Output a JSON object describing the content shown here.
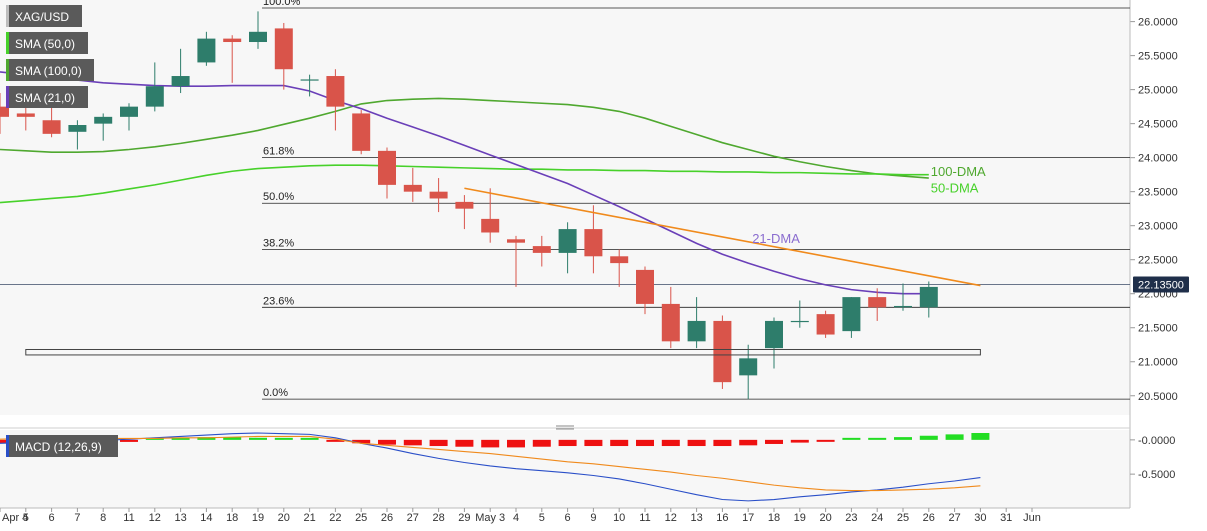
{
  "symbol": "XAG/USD",
  "legend": [
    {
      "label": "SMA (50,0)"
    },
    {
      "label": "SMA (100,0)"
    },
    {
      "label": "SMA (21,0)"
    }
  ],
  "macd_label": "MACD (12,26,9)",
  "current_price_label": "22.13500",
  "colors": {
    "up": "#2e7d6b",
    "down": "#d9544a",
    "sma21": "#6a3fb8",
    "sma50": "#47d12a",
    "sma100": "#4fa82f",
    "trend": "#f08a1c",
    "macd_up": "#22dd22",
    "macd_down": "#ee1111",
    "macd_line": "#2a4fc8",
    "signal_line": "#f08a1c"
  },
  "chart_data": [
    {
      "type": "candlestick",
      "x_labels": [
        "Apr 4",
        "5",
        "6",
        "7",
        "8",
        "11",
        "12",
        "13",
        "14",
        "18",
        "19",
        "20",
        "21",
        "22",
        "25",
        "26",
        "27",
        "28",
        "29",
        "May 3",
        "4",
        "5",
        "6",
        "9",
        "10",
        "11",
        "12",
        "13",
        "16",
        "17",
        "18",
        "19",
        "20",
        "23",
        "24",
        "25",
        "26",
        "27",
        "30",
        "31",
        "Jun"
      ],
      "y_ticks": [
        "26.0000",
        "25.5000",
        "25.0000",
        "24.5000",
        "24.0000",
        "23.5000",
        "23.0000",
        "22.5000",
        "22.0000",
        "21.5000",
        "21.0000",
        "20.5000"
      ],
      "ylim": [
        20.32,
        26.2
      ],
      "candles": [
        {
          "x": "Apr 4",
          "o": 24.75,
          "h": 24.95,
          "l": 24.35,
          "c": 24.6
        },
        {
          "x": "5",
          "o": 24.65,
          "h": 24.9,
          "l": 24.4,
          "c": 24.6
        },
        {
          "x": "6",
          "o": 24.55,
          "h": 24.85,
          "l": 24.3,
          "c": 24.35
        },
        {
          "x": "7",
          "o": 24.38,
          "h": 24.55,
          "l": 24.12,
          "c": 24.48
        },
        {
          "x": "8",
          "o": 24.5,
          "h": 24.65,
          "l": 24.25,
          "c": 24.6
        },
        {
          "x": "11",
          "o": 24.6,
          "h": 24.8,
          "l": 24.4,
          "c": 24.75
        },
        {
          "x": "12",
          "o": 24.75,
          "h": 25.4,
          "l": 24.68,
          "c": 25.05
        },
        {
          "x": "13",
          "o": 25.05,
          "h": 25.6,
          "l": 24.95,
          "c": 25.2
        },
        {
          "x": "14",
          "o": 25.4,
          "h": 25.85,
          "l": 25.35,
          "c": 25.75
        },
        {
          "x": "18",
          "o": 25.75,
          "h": 25.8,
          "l": 25.1,
          "c": 25.7
        },
        {
          "x": "19",
          "o": 25.7,
          "h": 26.15,
          "l": 25.6,
          "c": 25.85
        },
        {
          "x": "20",
          "o": 25.9,
          "h": 25.98,
          "l": 25.0,
          "c": 25.3
        },
        {
          "x": "21",
          "o": 25.15,
          "h": 25.22,
          "l": 24.9,
          "c": 25.15
        },
        {
          "x": "22",
          "o": 25.2,
          "h": 25.3,
          "l": 24.4,
          "c": 24.75
        },
        {
          "x": "25",
          "o": 24.65,
          "h": 24.7,
          "l": 24.05,
          "c": 24.1
        },
        {
          "x": "26",
          "o": 24.1,
          "h": 24.15,
          "l": 23.4,
          "c": 23.6
        },
        {
          "x": "27",
          "o": 23.6,
          "h": 23.85,
          "l": 23.35,
          "c": 23.5
        },
        {
          "x": "28",
          "o": 23.5,
          "h": 23.7,
          "l": 23.2,
          "c": 23.4
        },
        {
          "x": "29",
          "o": 23.35,
          "h": 23.45,
          "l": 22.95,
          "c": 23.25
        },
        {
          "x": "May 3",
          "o": 23.1,
          "h": 23.55,
          "l": 22.75,
          "c": 22.9
        },
        {
          "x": "4",
          "o": 22.8,
          "h": 22.85,
          "l": 22.1,
          "c": 22.75
        },
        {
          "x": "5",
          "o": 22.7,
          "h": 22.85,
          "l": 22.4,
          "c": 22.6
        },
        {
          "x": "6",
          "o": 22.6,
          "h": 23.05,
          "l": 22.3,
          "c": 22.95
        },
        {
          "x": "9",
          "o": 22.95,
          "h": 23.3,
          "l": 22.3,
          "c": 22.55
        },
        {
          "x": "10",
          "o": 22.55,
          "h": 22.65,
          "l": 22.1,
          "c": 22.45
        },
        {
          "x": "11",
          "o": 22.35,
          "h": 22.4,
          "l": 21.7,
          "c": 21.85
        },
        {
          "x": "12",
          "o": 21.85,
          "h": 22.1,
          "l": 21.2,
          "c": 21.3
        },
        {
          "x": "13",
          "o": 21.3,
          "h": 21.95,
          "l": 21.2,
          "c": 21.6
        },
        {
          "x": "16",
          "o": 21.6,
          "h": 21.68,
          "l": 20.6,
          "c": 20.7
        },
        {
          "x": "17",
          "o": 20.8,
          "h": 21.25,
          "l": 20.45,
          "c": 21.05
        },
        {
          "x": "18",
          "o": 21.2,
          "h": 21.65,
          "l": 20.9,
          "c": 21.6
        },
        {
          "x": "19",
          "o": 21.6,
          "h": 21.9,
          "l": 21.5,
          "c": 21.6
        },
        {
          "x": "20",
          "o": 21.7,
          "h": 21.75,
          "l": 21.35,
          "c": 21.4
        },
        {
          "x": "23",
          "o": 21.45,
          "h": 21.95,
          "l": 21.35,
          "c": 21.95
        },
        {
          "x": "24",
          "o": 21.95,
          "h": 22.08,
          "l": 21.6,
          "c": 21.8
        },
        {
          "x": "25",
          "o": 21.8,
          "h": 22.15,
          "l": 21.75,
          "c": 21.82
        },
        {
          "x": "26",
          "o": 21.8,
          "h": 22.18,
          "l": 21.65,
          "c": 22.1
        }
      ],
      "sma50": [
        23.34,
        23.37,
        23.4,
        23.43,
        23.48,
        23.54,
        23.6,
        23.67,
        23.74,
        23.8,
        23.84,
        23.86,
        23.88,
        23.89,
        23.89,
        23.88,
        23.87,
        23.86,
        23.85,
        23.84,
        23.83,
        23.83,
        23.82,
        23.82,
        23.81,
        23.81,
        23.8,
        23.8,
        23.79,
        23.79,
        23.78,
        23.78,
        23.77,
        23.76,
        23.76,
        23.75,
        23.75
      ],
      "sma100": [
        24.12,
        24.1,
        24.08,
        24.08,
        24.09,
        24.12,
        24.16,
        24.21,
        24.27,
        24.33,
        24.4,
        24.49,
        24.58,
        24.68,
        24.79,
        24.84,
        24.86,
        24.87,
        24.86,
        24.84,
        24.82,
        24.8,
        24.78,
        24.74,
        24.68,
        24.58,
        24.46,
        24.34,
        24.22,
        24.12,
        24.02,
        23.94,
        23.87,
        23.81,
        23.76,
        23.73,
        23.7
      ],
      "sma21": [
        25.26,
        25.22,
        25.18,
        25.14,
        25.1,
        25.08,
        25.06,
        25.05,
        25.05,
        25.06,
        25.06,
        25.06,
        24.98,
        24.84,
        24.72,
        24.58,
        24.45,
        24.32,
        24.18,
        24.04,
        23.9,
        23.76,
        23.62,
        23.45,
        23.28,
        23.1,
        22.92,
        22.74,
        22.58,
        22.45,
        22.33,
        22.22,
        22.13,
        22.06,
        22.02,
        22.0,
        22.0
      ],
      "fibonacci": [
        {
          "label": "100.0%",
          "value": 26.2
        },
        {
          "label": "61.8%",
          "value": 24.0
        },
        {
          "label": "50.0%",
          "value": 23.33
        },
        {
          "label": "38.2%",
          "value": 22.65
        },
        {
          "label": "23.6%",
          "value": 21.8
        },
        {
          "label": "0.0%",
          "value": 20.45
        }
      ],
      "trendline": {
        "from": {
          "x": "29",
          "y": 23.55
        },
        "to": {
          "x": "30",
          "y": 22.12
        }
      },
      "support_zone": {
        "from_x": "5",
        "to_x": "30",
        "low": 21.1,
        "high": 21.18
      },
      "current_price": 22.135,
      "annotations": [
        {
          "text": "100-DMA",
          "series": "sma100"
        },
        {
          "text": "50-DMA",
          "series": "sma50"
        },
        {
          "text": "21-DMA",
          "series": "sma21"
        }
      ]
    },
    {
      "type": "macd",
      "title": "MACD (12,26,9)",
      "y_ticks": [
        "-0.0000",
        "-0.5000"
      ],
      "ylim": [
        -0.95,
        0.1
      ],
      "histogram": [
        -0.05,
        -0.05,
        -0.06,
        -0.04,
        -0.03,
        -0.03,
        0.02,
        0.03,
        0.04,
        0.04,
        0.03,
        0.02,
        0.01,
        -0.02,
        -0.05,
        -0.07,
        -0.08,
        -0.09,
        -0.1,
        -0.11,
        -0.11,
        -0.1,
        -0.09,
        -0.09,
        -0.09,
        -0.09,
        -0.09,
        -0.09,
        -0.09,
        -0.08,
        -0.06,
        -0.04,
        -0.02,
        0.0,
        0.02,
        0.04,
        0.06,
        0.08,
        0.1
      ],
      "macd_line": [
        -0.05,
        -0.04,
        -0.03,
        -0.02,
        -0.01,
        0.01,
        0.03,
        0.05,
        0.07,
        0.09,
        0.1,
        0.09,
        0.08,
        0.03,
        -0.05,
        -0.12,
        -0.2,
        -0.27,
        -0.33,
        -0.38,
        -0.42,
        -0.45,
        -0.48,
        -0.52,
        -0.57,
        -0.64,
        -0.72,
        -0.8,
        -0.87,
        -0.89,
        -0.87,
        -0.83,
        -0.8,
        -0.76,
        -0.73,
        -0.69,
        -0.64,
        -0.6,
        -0.55
      ],
      "signal_line": [
        0.01,
        0.02,
        0.02,
        0.02,
        0.02,
        0.02,
        0.02,
        0.03,
        0.03,
        0.04,
        0.05,
        0.05,
        0.05,
        0.01,
        -0.05,
        -0.08,
        -0.11,
        -0.14,
        -0.17,
        -0.2,
        -0.24,
        -0.28,
        -0.32,
        -0.35,
        -0.39,
        -0.43,
        -0.47,
        -0.52,
        -0.56,
        -0.61,
        -0.66,
        -0.7,
        -0.73,
        -0.74,
        -0.74,
        -0.73,
        -0.72,
        -0.7,
        -0.67
      ]
    }
  ]
}
